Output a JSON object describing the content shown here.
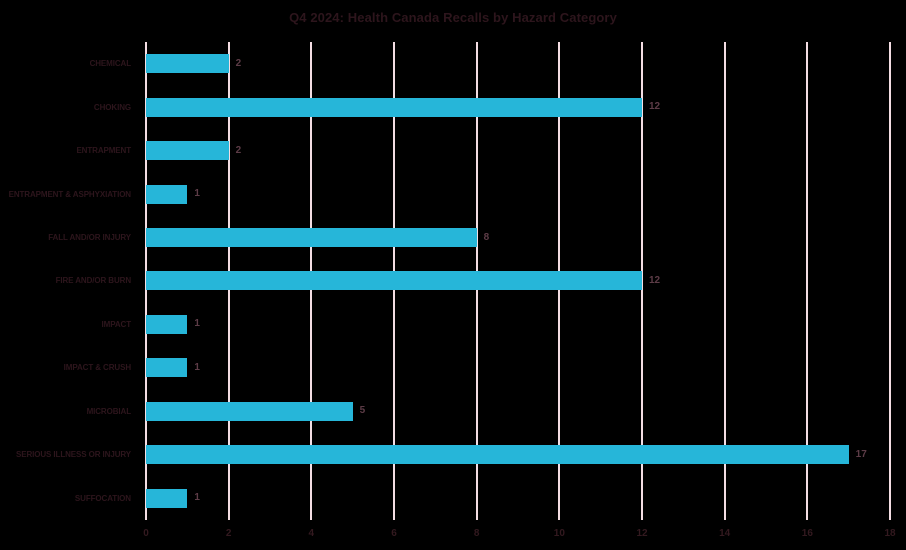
{
  "chart_data": {
    "type": "bar",
    "orientation": "horizontal",
    "title": "Q4 2024: Health Canada Recalls by Hazard Category",
    "categories": [
      "CHEMICAL",
      "CHOKING",
      "ENTRAPMENT",
      "ENTRAPMENT & ASPHYXIATION",
      "FALL AND/OR INJURY",
      "FIRE AND/OR BURN",
      "IMPACT",
      "IMPACT & CRUSH",
      "MICROBIAL",
      "SERIOUS ILLNESS OR INJURY",
      "SUFFOCATION"
    ],
    "values": [
      2,
      12,
      2,
      1,
      8,
      12,
      1,
      1,
      5,
      17,
      1
    ],
    "data_labels": [
      "2",
      "12",
      "2",
      "1",
      "8",
      "12",
      "1",
      "1",
      "5",
      "17",
      "1"
    ],
    "xlabel": "",
    "ylabel": "",
    "xlim": [
      0,
      18
    ],
    "x_ticks": [
      0,
      2,
      4,
      6,
      8,
      10,
      12,
      14,
      16,
      18
    ],
    "grid": "vertical-only",
    "legend": "none"
  },
  "colors": {
    "background": "#000000",
    "bar": "#26b6d9",
    "gridline": "#f3dde3",
    "title_text": "#2d151c",
    "category_text": "#2d151c",
    "value_text": "#5d3c47",
    "tick_text": "#33191f"
  }
}
